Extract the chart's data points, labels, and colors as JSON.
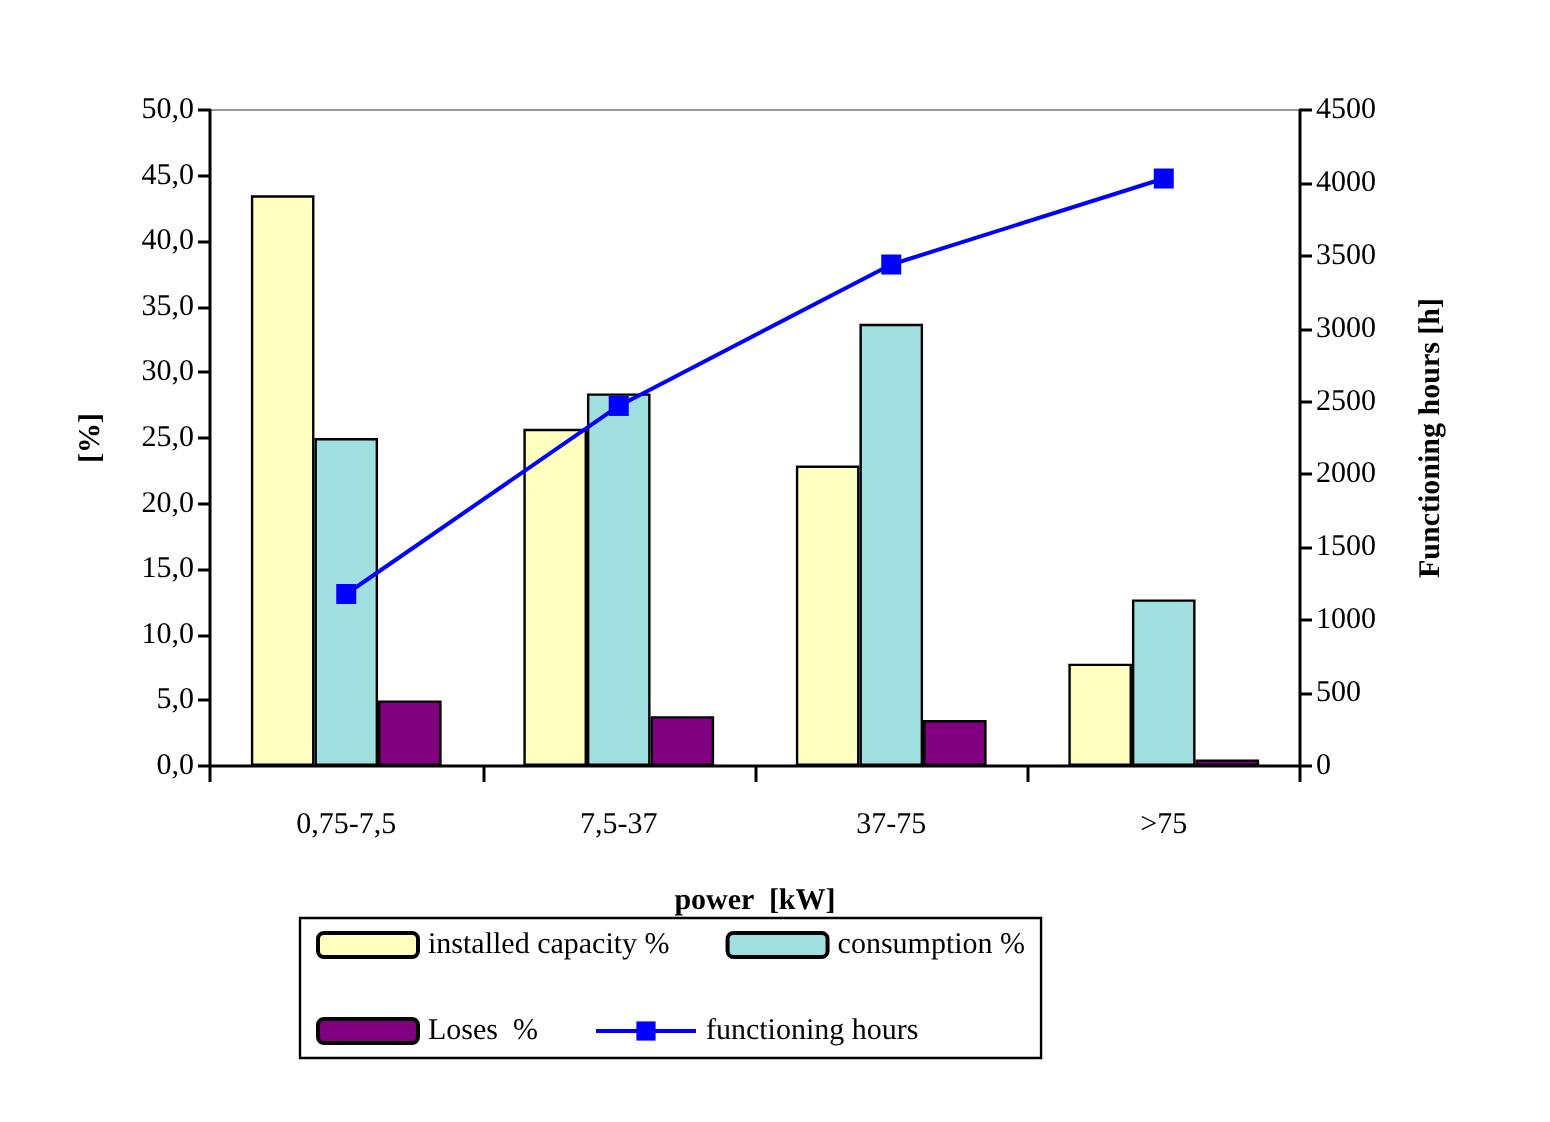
{
  "chart_data": {
    "type": "bar",
    "xlabel": "power  [kW]",
    "ylabel": "[%]",
    "y2label": "Functioning hours [h]",
    "categories": [
      "0,75-7,5",
      "7,5-37",
      "37-75",
      ">75"
    ],
    "series": [
      {
        "name": "installed capacity %",
        "color": "#ffffc0",
        "values": [
          43.5,
          25.7,
          22.9,
          7.8
        ]
      },
      {
        "name": "consumption %",
        "color": "#a0e0e0",
        "values": [
          25.0,
          28.4,
          33.7,
          12.7
        ]
      },
      {
        "name": "Loses  %",
        "color": "#800080",
        "values": [
          5.0,
          3.8,
          3.5,
          0.5
        ]
      },
      {
        "name": "functioning hours",
        "type": "line",
        "axis": "y2",
        "color": "#0000ff",
        "marker": "square",
        "line_style": "solid",
        "values": [
          1180,
          2470,
          3440,
          4030
        ]
      }
    ],
    "ylim": [
      0,
      50
    ],
    "yticks": [
      {
        "value": 0,
        "label": "0,0"
      },
      {
        "value": 5,
        "label": "5,0"
      },
      {
        "value": 10,
        "label": "10,0"
      },
      {
        "value": 15,
        "label": "15,0"
      },
      {
        "value": 20,
        "label": "20,0"
      },
      {
        "value": 25,
        "label": "25,0"
      },
      {
        "value": 30,
        "label": "30,0"
      },
      {
        "value": 35,
        "label": "35,0"
      },
      {
        "value": 40,
        "label": "40,0"
      },
      {
        "value": 45,
        "label": "45,0"
      },
      {
        "value": 50,
        "label": "50,0"
      }
    ],
    "y2lim": [
      0,
      4500
    ],
    "y2ticks": [
      0,
      500,
      1000,
      1500,
      2000,
      2500,
      3000,
      3500,
      4000,
      4500
    ],
    "grid": false,
    "legend": "bottom"
  }
}
